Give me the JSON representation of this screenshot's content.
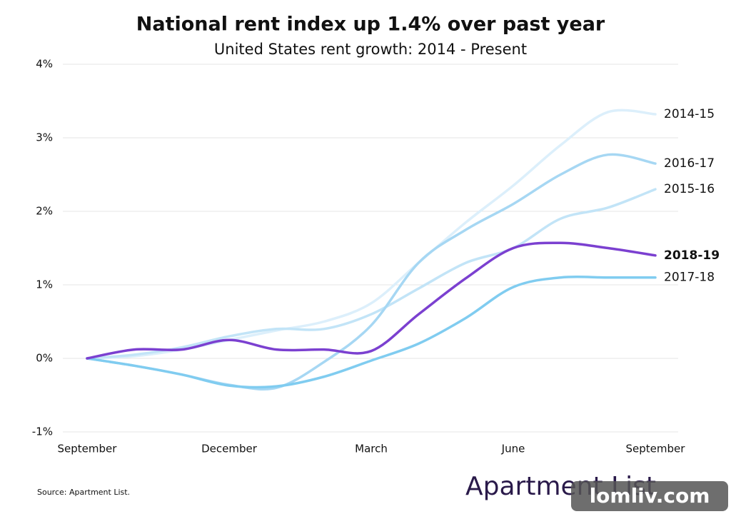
{
  "chart_data": {
    "type": "line",
    "title": "National rent index up 1.4% over past year",
    "subtitle": "United States rent growth: 2014 - Present",
    "categories": [
      "September",
      null,
      null,
      "December",
      null,
      null,
      "March",
      null,
      null,
      "June",
      null,
      null,
      "September"
    ],
    "ylim": [
      -1,
      4
    ],
    "yticks": [
      {
        "value": -1,
        "label": "-1%"
      },
      {
        "value": 0,
        "label": "0%"
      },
      {
        "value": 1,
        "label": "1%"
      },
      {
        "value": 2,
        "label": "2%"
      },
      {
        "value": 3,
        "label": "3%"
      },
      {
        "value": 4,
        "label": "4%"
      }
    ],
    "grid": true,
    "series": [
      {
        "name": "2014-15",
        "color": "#dcefFb",
        "values": [
          0,
          0.03,
          0.12,
          0.25,
          0.38,
          0.5,
          0.75,
          1.3,
          1.85,
          2.35,
          2.9,
          3.35,
          3.32
        ]
      },
      {
        "name": "2015-16",
        "color": "#c2e4f7",
        "values": [
          0,
          0.05,
          0.15,
          0.3,
          0.4,
          0.4,
          0.6,
          0.95,
          1.3,
          1.5,
          1.9,
          2.05,
          2.3
        ]
      },
      {
        "name": "2016-17",
        "color": "#a6d7f3",
        "values": [
          0,
          -0.1,
          -0.22,
          -0.36,
          -0.4,
          -0.05,
          0.45,
          1.3,
          1.75,
          2.1,
          2.5,
          2.77,
          2.65
        ]
      },
      {
        "name": "2017-18",
        "color": "#80ccf0",
        "values": [
          0,
          -0.1,
          -0.22,
          -0.37,
          -0.38,
          -0.25,
          -0.03,
          0.2,
          0.55,
          0.97,
          1.1,
          1.1,
          1.1
        ]
      },
      {
        "name": "2018-19",
        "color": "#7b40d0",
        "font_weight": "bold",
        "values": [
          0,
          0.12,
          0.12,
          0.25,
          0.12,
          0.12,
          0.1,
          0.6,
          1.09,
          1.5,
          1.57,
          1.5,
          1.4
        ]
      }
    ],
    "source": "Source: Apartment List.",
    "logo": "Apartment List",
    "watermark": "lomliv.com"
  }
}
